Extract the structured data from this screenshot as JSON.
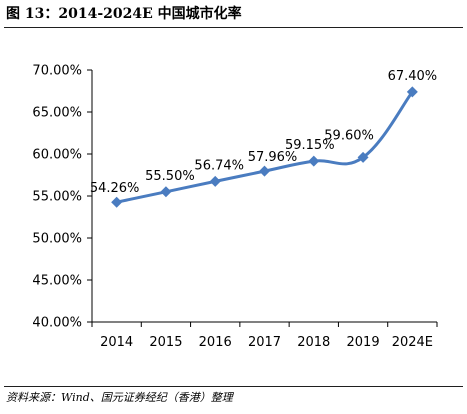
{
  "title": "图 13：2014-2024E 中国城市化率",
  "source": "资料来源：Wind、国元证券经纪（香港）整理",
  "chart_data": {
    "type": "line",
    "title": "图 13：2014-2024E 中国城市化率",
    "categories": [
      "2014",
      "2015",
      "2016",
      "2017",
      "2018",
      "2019",
      "2024E"
    ],
    "series": [
      {
        "values": [
          54.26,
          55.5,
          56.74,
          57.96,
          59.15,
          59.6,
          67.4
        ],
        "labels": [
          "54.26%",
          "55.50%",
          "56.74%",
          "57.96%",
          "59.15%",
          "59.60%",
          "67.40%"
        ]
      }
    ],
    "ylim": [
      40,
      70
    ],
    "yticks": [
      40,
      45,
      50,
      55,
      60,
      65,
      70
    ],
    "ytick_labels": [
      "40.00%",
      "45.00%",
      "50.00%",
      "55.00%",
      "60.00%",
      "65.00%",
      "70.00%"
    ],
    "xlabel": "",
    "ylabel": "",
    "grid": false,
    "legend": "none",
    "line_color": "#4a7cc0",
    "marker": "diamond"
  }
}
